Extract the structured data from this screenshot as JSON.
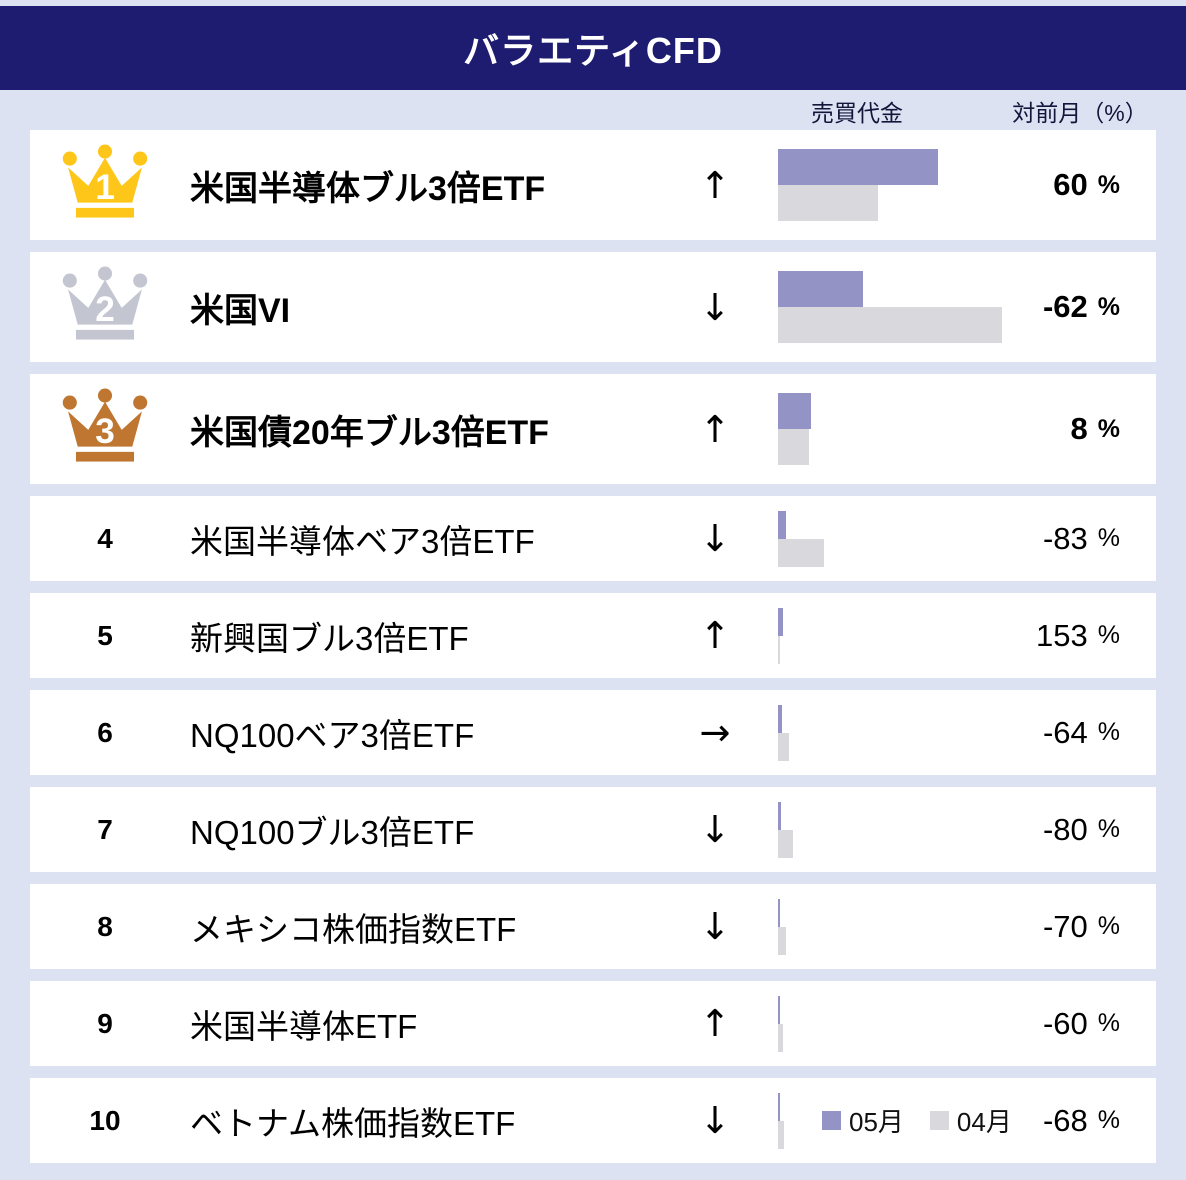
{
  "title": "バラエティCFD",
  "columns": {
    "volume": "売買代金",
    "mom": "対前月（%）"
  },
  "legend": {
    "may": "05月",
    "apr": "04月"
  },
  "colors": {
    "header_bg": "#1e1c70",
    "page_bg": "#dde2f3",
    "card_bg": "#ffffff",
    "bar_may": "#9493c6",
    "bar_apr": "#d9d8dc",
    "gold": "#ffc61a",
    "silver": "#c3c6d1",
    "bronze": "#bf7631"
  },
  "rows": [
    {
      "rank": "1",
      "medal": "gold",
      "name": "米国半導体ブル3倍ETF",
      "arrow": "↑",
      "value": "60",
      "unit": "%",
      "bar_may": 160,
      "bar_apr": 100
    },
    {
      "rank": "2",
      "medal": "silver",
      "name": "米国VI",
      "arrow": "↓",
      "value": "-62",
      "unit": "%",
      "bar_may": 85,
      "bar_apr": 224
    },
    {
      "rank": "3",
      "medal": "bronze",
      "name": "米国債20年ブル3倍ETF",
      "arrow": "↑",
      "value": "8",
      "unit": "%",
      "bar_may": 33,
      "bar_apr": 30.5
    },
    {
      "rank": "4",
      "medal": "",
      "name": "米国半導体ベア3倍ETF",
      "arrow": "↓",
      "value": "-83",
      "unit": "%",
      "bar_may": 8,
      "bar_apr": 46
    },
    {
      "rank": "5",
      "medal": "",
      "name": "新興国ブル3倍ETF",
      "arrow": "↑",
      "value": "153",
      "unit": "%",
      "bar_may": 5,
      "bar_apr": 2
    },
    {
      "rank": "6",
      "medal": "",
      "name": "NQ100ベア3倍ETF",
      "arrow": "→",
      "value": "-64",
      "unit": "%",
      "bar_may": 4,
      "bar_apr": 11
    },
    {
      "rank": "7",
      "medal": "",
      "name": "NQ100ブル3倍ETF",
      "arrow": "↓",
      "value": "-80",
      "unit": "%",
      "bar_may": 3,
      "bar_apr": 15
    },
    {
      "rank": "8",
      "medal": "",
      "name": "メキシコ株価指数ETF",
      "arrow": "↓",
      "value": "-70",
      "unit": "%",
      "bar_may": 2.4,
      "bar_apr": 8
    },
    {
      "rank": "9",
      "medal": "",
      "name": "米国半導体ETF",
      "arrow": "↑",
      "value": "-60",
      "unit": "%",
      "bar_may": 2,
      "bar_apr": 5
    },
    {
      "rank": "10",
      "medal": "",
      "name": "ベトナム株価指数ETF",
      "arrow": "↓",
      "value": "-68",
      "unit": "%",
      "bar_may": 2,
      "bar_apr": 6.2
    }
  ],
  "chart_data": {
    "type": "bar",
    "orientation": "horizontal",
    "title": "バラエティCFD",
    "categories": [
      "米国半導体ブル3倍ETF",
      "米国VI",
      "米国債20年ブル3倍ETF",
      "米国半導体ベア3倍ETF",
      "新興国ブル3倍ETF",
      "NQ100ベア3倍ETF",
      "NQ100ブル3倍ETF",
      "メキシコ株価指数ETF",
      "米国半導体ETF",
      "ベトナム株価指数ETF"
    ],
    "series": [
      {
        "name": "05月",
        "color": "#9493c6",
        "values": [
          160,
          85,
          33,
          8,
          5,
          4,
          3,
          2.4,
          2,
          2
        ]
      },
      {
        "name": "04月",
        "color": "#d9d8dc",
        "values": [
          100,
          224,
          30.5,
          46,
          2,
          11,
          15,
          8,
          5,
          6.2
        ]
      }
    ],
    "value_axis_label": "売買代金",
    "mom_change_label": "対前月（%）",
    "mom_change_pct": [
      60,
      -62,
      8,
      -83,
      153,
      -64,
      -80,
      -70,
      -60,
      -68
    ],
    "trend_arrows": [
      "up",
      "down",
      "up",
      "down",
      "up",
      "flat",
      "down",
      "down",
      "up",
      "down"
    ],
    "ranks": [
      1,
      2,
      3,
      4,
      5,
      6,
      7,
      8,
      9,
      10
    ],
    "legend_position": "bottom-right",
    "grid": false
  }
}
